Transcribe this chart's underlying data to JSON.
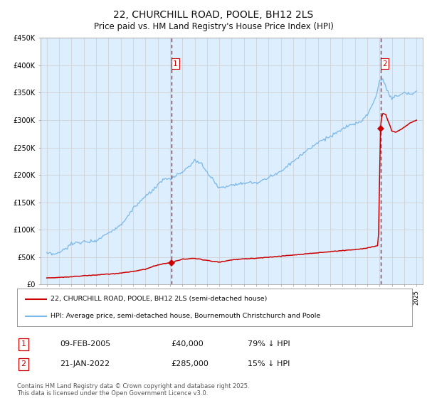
{
  "title": "22, CHURCHILL ROAD, POOLE, BH12 2LS",
  "subtitle": "Price paid vs. HM Land Registry's House Price Index (HPI)",
  "title_fontsize": 10,
  "subtitle_fontsize": 8.5,
  "background_color": "#ffffff",
  "plot_bg_color": "#ddeeff",
  "grid_color": "#cccccc",
  "hpi_line_color": "#7ab8e8",
  "price_line_color": "#cc0000",
  "vline_color": "#cc0000",
  "sale1_date_num": 2005.1,
  "sale1_price": 40000,
  "sale2_date_num": 2022.07,
  "sale2_price": 285000,
  "legend_label_price": "22, CHURCHILL ROAD, POOLE, BH12 2LS (semi-detached house)",
  "legend_label_hpi": "HPI: Average price, semi-detached house, Bournemouth Christchurch and Poole",
  "annotation1_date": "09-FEB-2005",
  "annotation1_price": "£40,000",
  "annotation1_hpi": "79% ↓ HPI",
  "annotation2_date": "21-JAN-2022",
  "annotation2_price": "£285,000",
  "annotation2_hpi": "15% ↓ HPI",
  "footer": "Contains HM Land Registry data © Crown copyright and database right 2025.\nThis data is licensed under the Open Government Licence v3.0.",
  "ylim": [
    0,
    450000
  ],
  "xlim_start": 1994.5,
  "xlim_end": 2025.5,
  "hpi_points_t": [
    1995,
    1995.5,
    1996,
    1997,
    1998,
    1999,
    2000,
    2001,
    2002,
    2003,
    2004,
    2004.5,
    2005,
    2006,
    2007.0,
    2007.5,
    2008,
    2009,
    2009.5,
    2010,
    2011,
    2012,
    2013,
    2014,
    2015,
    2016,
    2017,
    2017.5,
    2018,
    2019,
    2019.5,
    2020,
    2020.5,
    2021,
    2021.5,
    2021.8,
    2022.0,
    2022.3,
    2022.6,
    2023.0,
    2023.5,
    2024,
    2024.5,
    2025
  ],
  "hpi_points_v": [
    56000,
    55000,
    57000,
    74000,
    78000,
    80000,
    95000,
    108000,
    138000,
    160000,
    180000,
    192000,
    192000,
    205000,
    225000,
    222000,
    205000,
    176000,
    178000,
    183000,
    185000,
    185000,
    195000,
    207000,
    225000,
    243000,
    260000,
    265000,
    270000,
    283000,
    290000,
    293000,
    298000,
    310000,
    332000,
    350000,
    374000,
    372000,
    355000,
    340000,
    345000,
    350000,
    348000,
    352000
  ],
  "price_points_t": [
    1995,
    1996,
    1997,
    1998,
    1999,
    2000,
    2001,
    2002,
    2003,
    2004,
    2005.1,
    2005.5,
    2006,
    2007,
    2008,
    2009.0,
    2009.5,
    2010,
    2011,
    2012,
    2013,
    2014,
    2015,
    2016,
    2017,
    2018,
    2019,
    2020,
    2020.5,
    2021,
    2021.5,
    2021.9,
    2022.07,
    2022.2,
    2022.5,
    2022.8,
    2023.0,
    2023.3,
    2023.7,
    2024,
    2024.5,
    2025
  ],
  "price_points_v": [
    12000,
    13000,
    14500,
    16000,
    17500,
    19000,
    21000,
    24000,
    28000,
    36000,
    40000,
    43000,
    46000,
    48000,
    44000,
    41000,
    43000,
    45000,
    47000,
    48000,
    50000,
    52000,
    54000,
    56000,
    58000,
    60000,
    62000,
    64000,
    65000,
    67000,
    69000,
    71000,
    285000,
    312000,
    310000,
    292000,
    280000,
    278000,
    282000,
    287000,
    295000,
    300000
  ]
}
